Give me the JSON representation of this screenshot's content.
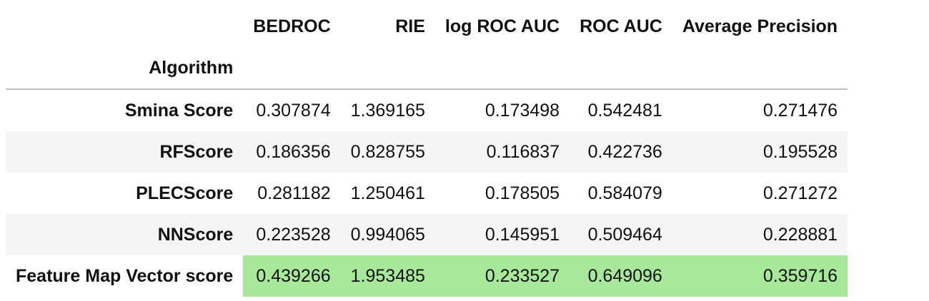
{
  "table": {
    "columns": [
      "BEDROC",
      "RIE",
      "log ROC AUC",
      "ROC AUC",
      "Average Precision"
    ],
    "index_name": "Algorithm",
    "rows": [
      {
        "name": "Smina Score",
        "values": [
          "0.307874",
          "1.369165",
          "0.173498",
          "0.542481",
          "0.271476"
        ],
        "highlight": false
      },
      {
        "name": "RFScore",
        "values": [
          "0.186356",
          "0.828755",
          "0.116837",
          "0.422736",
          "0.195528"
        ],
        "highlight": false
      },
      {
        "name": "PLECScore",
        "values": [
          "0.281182",
          "1.250461",
          "0.178505",
          "0.584079",
          "0.271272"
        ],
        "highlight": false
      },
      {
        "name": "NNScore",
        "values": [
          "0.223528",
          "0.994065",
          "0.145951",
          "0.509464",
          "0.228881"
        ],
        "highlight": false
      },
      {
        "name": "Feature Map Vector score",
        "values": [
          "0.439266",
          "1.953485",
          "0.233527",
          "0.649096",
          "0.359716"
        ],
        "highlight": true
      }
    ]
  },
  "colors": {
    "highlight": "#a7e89a",
    "stripe": "#f5f5f5",
    "rule": "#bdbdbd"
  }
}
